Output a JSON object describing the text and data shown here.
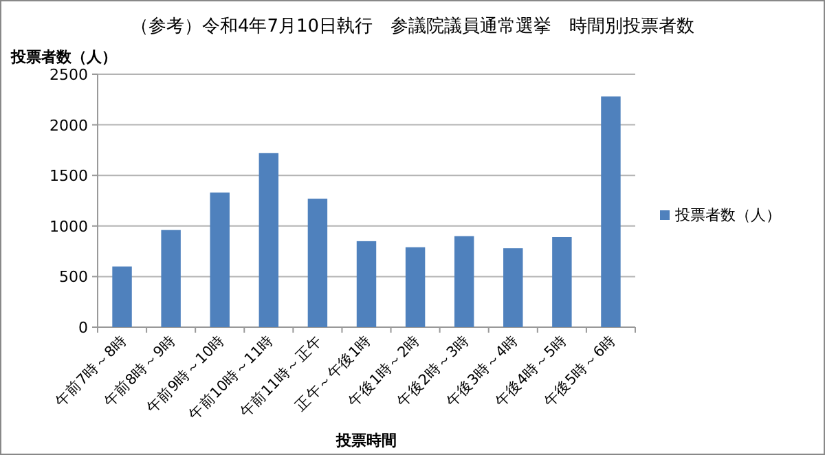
{
  "chart_data": {
    "type": "bar",
    "title": "（参考）令和4年7月10日執行　参議院議員通常選挙　時間別投票者数",
    "xlabel": "投票時間",
    "ylabel": "投票者数（人）",
    "categories": [
      "午前7時～8時",
      "午前8時～9時",
      "午前9時～10時",
      "午前10時～11時",
      "午前11時～正午",
      "正午～午後1時",
      "午後1時～2時",
      "午後2時～3時",
      "午後3時～4時",
      "午後4時～5時",
      "午後5時～6時"
    ],
    "series": [
      {
        "name": "投票者数（人）",
        "color": "#4f81bd",
        "values": [
          600,
          960,
          1330,
          1720,
          1270,
          850,
          790,
          900,
          780,
          890,
          2280
        ]
      }
    ],
    "ylim": [
      0,
      2500
    ],
    "yticks": [
      0,
      500,
      1000,
      1500,
      2000,
      2500
    ],
    "grid": "y",
    "legend": "right"
  }
}
